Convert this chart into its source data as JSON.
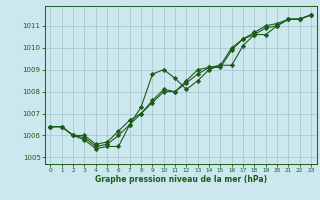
{
  "title": "Graphe pression niveau de la mer (hPa)",
  "bg_color": "#cce8ee",
  "grid_color": "#aac8d0",
  "line_color": "#1a5c1a",
  "xlim": [
    -0.5,
    23.5
  ],
  "ylim": [
    1004.7,
    1011.9
  ],
  "yticks": [
    1005,
    1006,
    1007,
    1008,
    1009,
    1010,
    1011
  ],
  "xticks": [
    0,
    1,
    2,
    3,
    4,
    5,
    6,
    7,
    8,
    9,
    10,
    11,
    12,
    13,
    14,
    15,
    16,
    17,
    18,
    19,
    20,
    21,
    22,
    23
  ],
  "line1_x": [
    0,
    1,
    2,
    3,
    4,
    5,
    6,
    7,
    8,
    9,
    10,
    11,
    12,
    13,
    14,
    15,
    16,
    17,
    18,
    19,
    20,
    21,
    22,
    23
  ],
  "line1_y": [
    1006.4,
    1006.4,
    1006.0,
    1005.8,
    1005.4,
    1005.5,
    1005.5,
    1006.5,
    1007.3,
    1008.8,
    1009.0,
    1008.6,
    1008.1,
    1008.5,
    1009.0,
    1009.2,
    1009.2,
    1010.1,
    1010.6,
    1010.6,
    1011.0,
    1011.3,
    1011.3,
    1011.5
  ],
  "line2_x": [
    0,
    1,
    2,
    3,
    4,
    5,
    6,
    7,
    8,
    9,
    10,
    11,
    12,
    13,
    14,
    15,
    16,
    17,
    18,
    19,
    20,
    21,
    22,
    23
  ],
  "line2_y": [
    1006.4,
    1006.4,
    1006.0,
    1005.9,
    1005.5,
    1005.6,
    1006.0,
    1006.5,
    1007.0,
    1007.6,
    1008.1,
    1008.0,
    1008.5,
    1009.0,
    1009.1,
    1009.2,
    1010.0,
    1010.4,
    1010.7,
    1011.0,
    1011.1,
    1011.3,
    1011.3,
    1011.5
  ],
  "line3_x": [
    0,
    1,
    2,
    3,
    4,
    5,
    6,
    7,
    8,
    9,
    10,
    11,
    12,
    13,
    14,
    15,
    16,
    17,
    18,
    19,
    20,
    21,
    22,
    23
  ],
  "line3_y": [
    1006.4,
    1006.4,
    1006.0,
    1006.0,
    1005.6,
    1005.7,
    1006.2,
    1006.7,
    1007.0,
    1007.5,
    1008.0,
    1008.0,
    1008.4,
    1008.8,
    1009.1,
    1009.1,
    1009.9,
    1010.4,
    1010.6,
    1010.9,
    1011.0,
    1011.3,
    1011.3,
    1011.5
  ]
}
